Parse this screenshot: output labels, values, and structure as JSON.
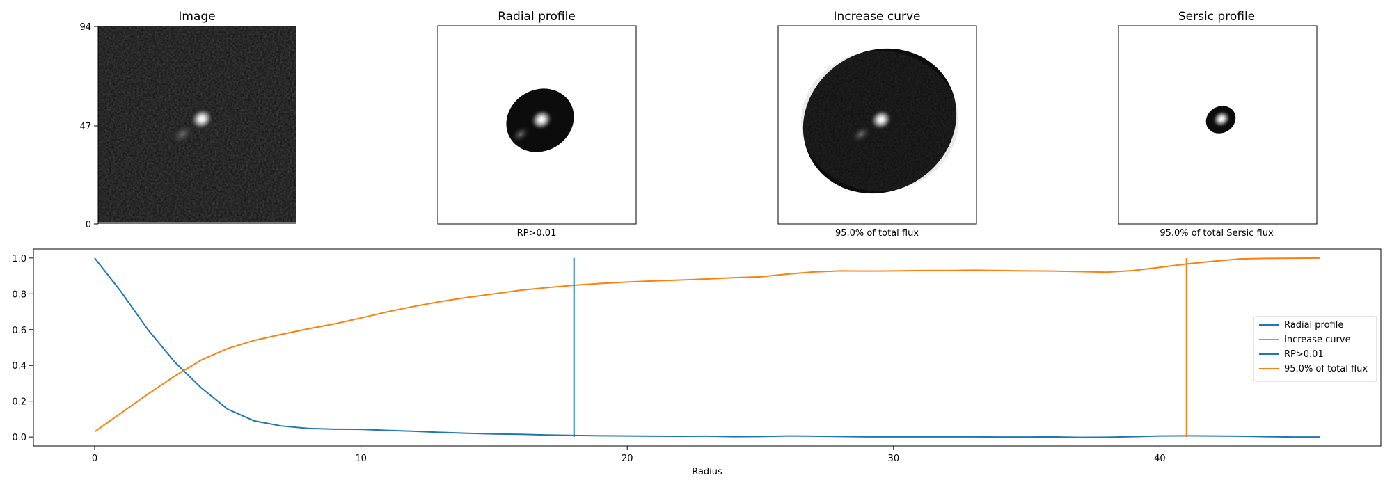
{
  "panels": [
    {
      "id": "image",
      "title": "Image",
      "xlabel": "",
      "yticks": [
        "94",
        "47",
        "0"
      ],
      "mask": "none"
    },
    {
      "id": "radial",
      "title": "Radial profile",
      "xlabel": "RP>0.01",
      "mask": "small-ellipse"
    },
    {
      "id": "increase",
      "title": "Increase curve",
      "xlabel": "95.0% of total flux",
      "mask": "large-ellipse"
    },
    {
      "id": "sersic",
      "title": "Sersic profile",
      "xlabel": "95.0% of total Sersic flux",
      "mask": "core"
    }
  ],
  "colors": {
    "blue": "#1f77b4",
    "orange": "#ff7f0e"
  },
  "chart_data": {
    "type": "line",
    "xlabel": "Radius",
    "ylabel": "",
    "xlim": [
      -2.3,
      48.3
    ],
    "ylim": [
      -0.05,
      1.05
    ],
    "xticks": [
      0,
      10,
      20,
      30,
      40
    ],
    "yticks": [
      0.0,
      0.2,
      0.4,
      0.6,
      0.8,
      1.0
    ],
    "ytick_labels": [
      "0.0",
      "0.2",
      "0.4",
      "0.6",
      "0.8",
      "1.0"
    ],
    "grid": false,
    "legend_position": "center-right",
    "series": [
      {
        "name": "Radial profile",
        "color": "#1f77b4",
        "x": [
          0,
          1,
          2,
          3,
          4,
          5,
          6,
          7,
          8,
          9,
          10,
          11,
          12,
          13,
          14,
          15,
          16,
          17,
          18,
          19,
          20,
          21,
          22,
          23,
          24,
          25,
          26,
          27,
          28,
          29,
          30,
          31,
          32,
          33,
          34,
          35,
          36,
          37,
          38,
          39,
          40,
          41,
          42,
          43,
          44,
          45,
          46
        ],
        "y": [
          1.0,
          0.81,
          0.6,
          0.42,
          0.275,
          0.155,
          0.09,
          0.062,
          0.048,
          0.044,
          0.043,
          0.037,
          0.032,
          0.026,
          0.021,
          0.017,
          0.015,
          0.011,
          0.009,
          0.007,
          0.006,
          0.005,
          0.004,
          0.005,
          0.002,
          0.003,
          0.006,
          0.005,
          0.003,
          0.001,
          0.001,
          0.001,
          0.001,
          0.001,
          0.0,
          0.0,
          0.001,
          -0.002,
          -0.001,
          0.002,
          0.006,
          0.007,
          0.006,
          0.005,
          0.002,
          0.0,
          0.0
        ]
      },
      {
        "name": "Increase curve",
        "color": "#ff7f0e",
        "x": [
          0,
          1,
          2,
          3,
          4,
          5,
          6,
          7,
          8,
          9,
          10,
          11,
          12,
          13,
          14,
          15,
          16,
          17,
          18,
          19,
          20,
          21,
          22,
          23,
          24,
          25,
          26,
          27,
          28,
          29,
          30,
          31,
          32,
          33,
          34,
          35,
          36,
          37,
          38,
          39,
          40,
          41,
          42,
          43,
          44,
          45,
          46
        ],
        "y": [
          0.03,
          0.135,
          0.24,
          0.34,
          0.43,
          0.495,
          0.54,
          0.573,
          0.604,
          0.632,
          0.665,
          0.7,
          0.73,
          0.757,
          0.78,
          0.8,
          0.82,
          0.835,
          0.848,
          0.858,
          0.866,
          0.872,
          0.877,
          0.883,
          0.89,
          0.895,
          0.91,
          0.922,
          0.928,
          0.927,
          0.928,
          0.93,
          0.93,
          0.932,
          0.93,
          0.928,
          0.927,
          0.924,
          0.921,
          0.93,
          0.948,
          0.967,
          0.982,
          0.995,
          0.998,
          0.999,
          1.0
        ]
      },
      {
        "name": "RP>0.01",
        "color": "#1f77b4",
        "type": "vline",
        "x": [
          18,
          18
        ],
        "y": [
          0.0,
          1.0
        ]
      },
      {
        "name": "95.0% of total flux",
        "color": "#ff7f0e",
        "type": "vline",
        "x": [
          41,
          41
        ],
        "y": [
          0.0,
          1.0
        ]
      }
    ]
  }
}
